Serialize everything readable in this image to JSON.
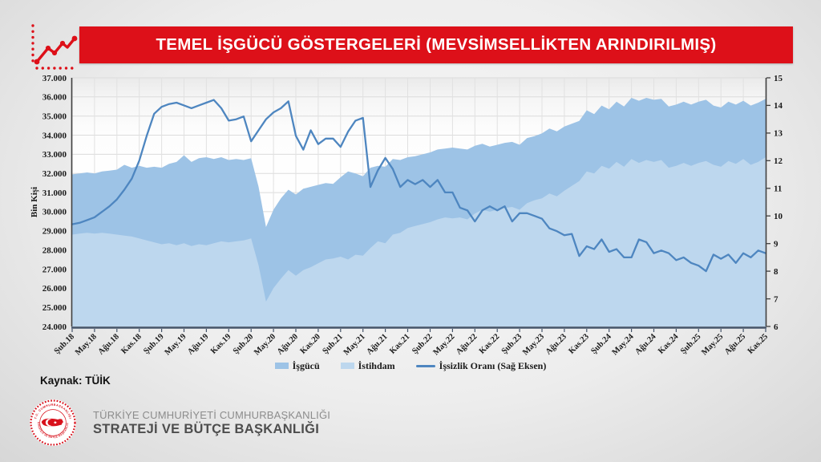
{
  "banner": {
    "title": "TEMEL İŞGÜCÜ GÖSTERGELERİ (MEVSİMSELLİKTEN ARINDIRILMIŞ)",
    "icon": "line-chart-icon"
  },
  "colors": {
    "banner_red": "#DD1019",
    "logo_red": "#D8101B",
    "area_labor_force": "#9DC3E6",
    "area_employment": "#BDD7EE",
    "line_unemployment": "#4E86C0",
    "axis_dark": "#404040",
    "baseline_dark": "#44546A",
    "gridline": "#dcdcdc"
  },
  "chart_data": {
    "type": "area+line",
    "months_per_tick": 3,
    "x_tick_labels": [
      "Şub.18",
      "May.18",
      "Ağu.18",
      "Kas.18",
      "Şub.19",
      "May.19",
      "Ağu.19",
      "Kas.19",
      "Şub.20",
      "May.20",
      "Ağu.20",
      "Kas.20",
      "Şub.21",
      "May.21",
      "Ağu.21",
      "Kas.21",
      "Şub.22",
      "May.22",
      "Ağu.22",
      "Kas.22",
      "Şub.23",
      "May.23",
      "Ağu.23",
      "Kas.23",
      "Şub.24",
      "May.24",
      "Ağu.24",
      "Kas.24",
      "Şub.25",
      "May.25",
      "Ağu.25",
      "Kas.25"
    ],
    "left_axis": {
      "title": "Bin Kişi",
      "min": 24,
      "max": 37,
      "step": 1,
      "tick_suffix": ".000"
    },
    "right_axis": {
      "min": 6,
      "max": 15,
      "step": 1
    },
    "grid": true,
    "legend_position": "bottom",
    "series": [
      {
        "name": "İşgücü",
        "type": "area",
        "axis": "left",
        "color": "#9DC3E6",
        "values": [
          31.95,
          32.0,
          32.05,
          32.0,
          32.1,
          32.15,
          32.2,
          32.45,
          32.3,
          32.4,
          32.3,
          32.35,
          32.3,
          32.5,
          32.6,
          32.95,
          32.6,
          32.8,
          32.85,
          32.75,
          32.85,
          32.7,
          32.75,
          32.7,
          32.8,
          31.3,
          29.2,
          30.1,
          30.7,
          31.15,
          30.9,
          31.2,
          31.3,
          31.4,
          31.5,
          31.45,
          31.8,
          32.1,
          32.0,
          31.85,
          32.3,
          32.4,
          32.35,
          32.75,
          32.7,
          32.85,
          32.9,
          33.0,
          33.1,
          33.25,
          33.3,
          33.35,
          33.3,
          33.25,
          33.45,
          33.55,
          33.4,
          33.5,
          33.6,
          33.65,
          33.5,
          33.85,
          33.95,
          34.1,
          34.35,
          34.2,
          34.45,
          34.6,
          34.75,
          35.3,
          35.1,
          35.55,
          35.35,
          35.75,
          35.5,
          35.95,
          35.8,
          35.95,
          35.85,
          35.9,
          35.5,
          35.6,
          35.75,
          35.6,
          35.75,
          35.85,
          35.55,
          35.45,
          35.75,
          35.6,
          35.8,
          35.55,
          35.7,
          35.9
        ]
      },
      {
        "name": "İstihdam",
        "type": "area",
        "axis": "left",
        "color": "#BDD7EE",
        "values": [
          28.8,
          28.85,
          28.9,
          28.85,
          28.9,
          28.85,
          28.8,
          28.75,
          28.7,
          28.6,
          28.5,
          28.4,
          28.3,
          28.35,
          28.25,
          28.35,
          28.2,
          28.3,
          28.25,
          28.35,
          28.45,
          28.4,
          28.45,
          28.5,
          28.6,
          27.2,
          25.3,
          26.0,
          26.5,
          26.95,
          26.65,
          26.95,
          27.1,
          27.3,
          27.5,
          27.55,
          27.65,
          27.5,
          27.75,
          27.7,
          28.1,
          28.45,
          28.35,
          28.8,
          28.9,
          29.15,
          29.25,
          29.35,
          29.45,
          29.6,
          29.7,
          29.65,
          29.7,
          29.6,
          29.9,
          30.1,
          30.0,
          30.1,
          30.2,
          30.25,
          30.1,
          30.45,
          30.6,
          30.7,
          30.95,
          30.8,
          31.1,
          31.35,
          31.6,
          32.1,
          32.0,
          32.4,
          32.25,
          32.6,
          32.35,
          32.75,
          32.55,
          32.7,
          32.6,
          32.7,
          32.3,
          32.4,
          32.55,
          32.4,
          32.55,
          32.65,
          32.45,
          32.35,
          32.65,
          32.5,
          32.75,
          32.45,
          32.6,
          32.85
        ]
      },
      {
        "name": "İşsizlik Oranı (Sağ Eksen)",
        "type": "line",
        "axis": "right",
        "color": "#4E86C0",
        "values": [
          9.7,
          9.75,
          9.85,
          9.95,
          10.15,
          10.35,
          10.6,
          10.95,
          11.35,
          12.0,
          12.9,
          13.7,
          13.95,
          14.05,
          14.1,
          14.0,
          13.9,
          14.0,
          14.1,
          14.2,
          13.9,
          13.45,
          13.5,
          13.6,
          12.7,
          13.1,
          13.5,
          13.75,
          13.9,
          14.15,
          12.9,
          12.4,
          13.1,
          12.6,
          12.8,
          12.8,
          12.5,
          13.05,
          13.45,
          13.55,
          11.05,
          11.65,
          12.1,
          11.7,
          11.05,
          11.3,
          11.15,
          11.3,
          11.05,
          11.3,
          10.85,
          10.85,
          10.3,
          10.2,
          9.8,
          10.2,
          10.35,
          10.2,
          10.35,
          9.8,
          10.1,
          10.1,
          10.0,
          9.9,
          9.55,
          9.45,
          9.3,
          9.35,
          8.55,
          8.9,
          8.8,
          9.15,
          8.7,
          8.8,
          8.5,
          8.5,
          9.15,
          9.05,
          8.65,
          8.75,
          8.65,
          8.4,
          8.5,
          8.3,
          8.2,
          8.0,
          8.6,
          8.45,
          8.6,
          8.3,
          8.65,
          8.5,
          8.75,
          8.65
        ]
      }
    ]
  },
  "source": {
    "label": "Kaynak: TÜİK"
  },
  "footer": {
    "logo": "sbb-presidency-seal",
    "logo_text_top": "T.C. CUMHURBAŞKANLIĞI",
    "logo_text_bottom": "STRATEJİ VE BÜTÇE BAŞKANLIĞI",
    "org_line1": "TÜRKİYE CUMHURİYETİ CUMHURBAŞKANLIĞI",
    "org_line2": "STRATEJİ VE BÜTÇE BAŞKANLIĞI"
  }
}
